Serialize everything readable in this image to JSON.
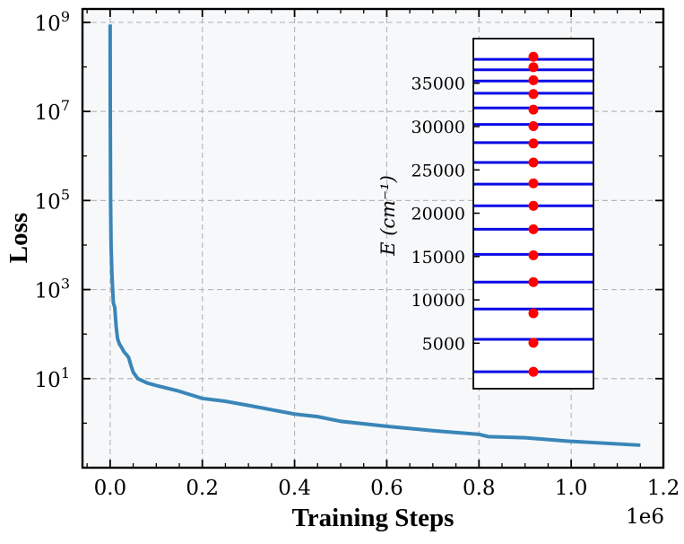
{
  "colors": {
    "plot_background": "#f6f8fa",
    "loss_line": "#3a86b8",
    "energy_level": "#0a0ae6",
    "energy_point": "#ff0000",
    "grid": "#b9b9b9"
  },
  "chart_data": [
    {
      "type": "line",
      "title": "",
      "xlabel": "Training Steps",
      "ylabel": "Loss",
      "x_scale_label": "1e6",
      "y_scale": "log",
      "xlim": [
        -0.06,
        1.2
      ],
      "ylim": [
        0.1,
        2000000000
      ],
      "x_ticks": [
        0.0,
        0.2,
        0.4,
        0.6,
        0.8,
        1.0,
        1.2
      ],
      "x_tick_labels": [
        "0.0",
        "0.2",
        "0.4",
        "0.6",
        "0.8",
        "1.0",
        "1.2"
      ],
      "y_ticks": [
        10,
        1000,
        100000,
        10000000,
        1000000000
      ],
      "y_tick_labels": [
        {
          "base": "10",
          "exp": "1"
        },
        {
          "base": "10",
          "exp": "3"
        },
        {
          "base": "10",
          "exp": "5"
        },
        {
          "base": "10",
          "exp": "7"
        },
        {
          "base": "10",
          "exp": "9"
        }
      ],
      "grid": true,
      "series": [
        {
          "x": [
            0.0,
            0.0003,
            0.001,
            0.002,
            0.004,
            0.007,
            0.01,
            0.013,
            0.016,
            0.02,
            0.025,
            0.03,
            0.035,
            0.04,
            0.045,
            0.05,
            0.06,
            0.08,
            0.1,
            0.15,
            0.2,
            0.25,
            0.3,
            0.35,
            0.4,
            0.45,
            0.5,
            0.6,
            0.7,
            0.8,
            0.82,
            0.9,
            1.0,
            1.15
          ],
          "y": [
            900000000,
            10000000,
            100000,
            10000,
            2000,
            500,
            400,
            150,
            80,
            60,
            50,
            40,
            35,
            30,
            20,
            14,
            10,
            8,
            7,
            5.2,
            3.6,
            3.1,
            2.5,
            2.0,
            1.6,
            1.4,
            1.1,
            0.85,
            0.68,
            0.56,
            0.5,
            0.47,
            0.39,
            0.32
          ]
        }
      ]
    },
    {
      "type": "scatter",
      "title": "",
      "xlabel": "",
      "ylabel": "E (cm⁻¹)",
      "ylim": [
        -250,
        40150
      ],
      "y_ticks": [
        5000,
        10000,
        15000,
        20000,
        25000,
        30000,
        35000
      ],
      "y_tick_labels": [
        "5000",
        "10000",
        "15000",
        "20000",
        "25000",
        "30000",
        "35000"
      ],
      "levels": [
        1700,
        5450,
        8950,
        12050,
        15250,
        18150,
        20850,
        23350,
        25850,
        28150,
        30250,
        32150,
        33850,
        35250,
        36550,
        37750
      ],
      "points": [
        1700,
        5050,
        8450,
        12050,
        15150,
        18150,
        20850,
        23450,
        25850,
        28050,
        30050,
        31950,
        33750,
        35350,
        36850,
        38050
      ]
    }
  ]
}
